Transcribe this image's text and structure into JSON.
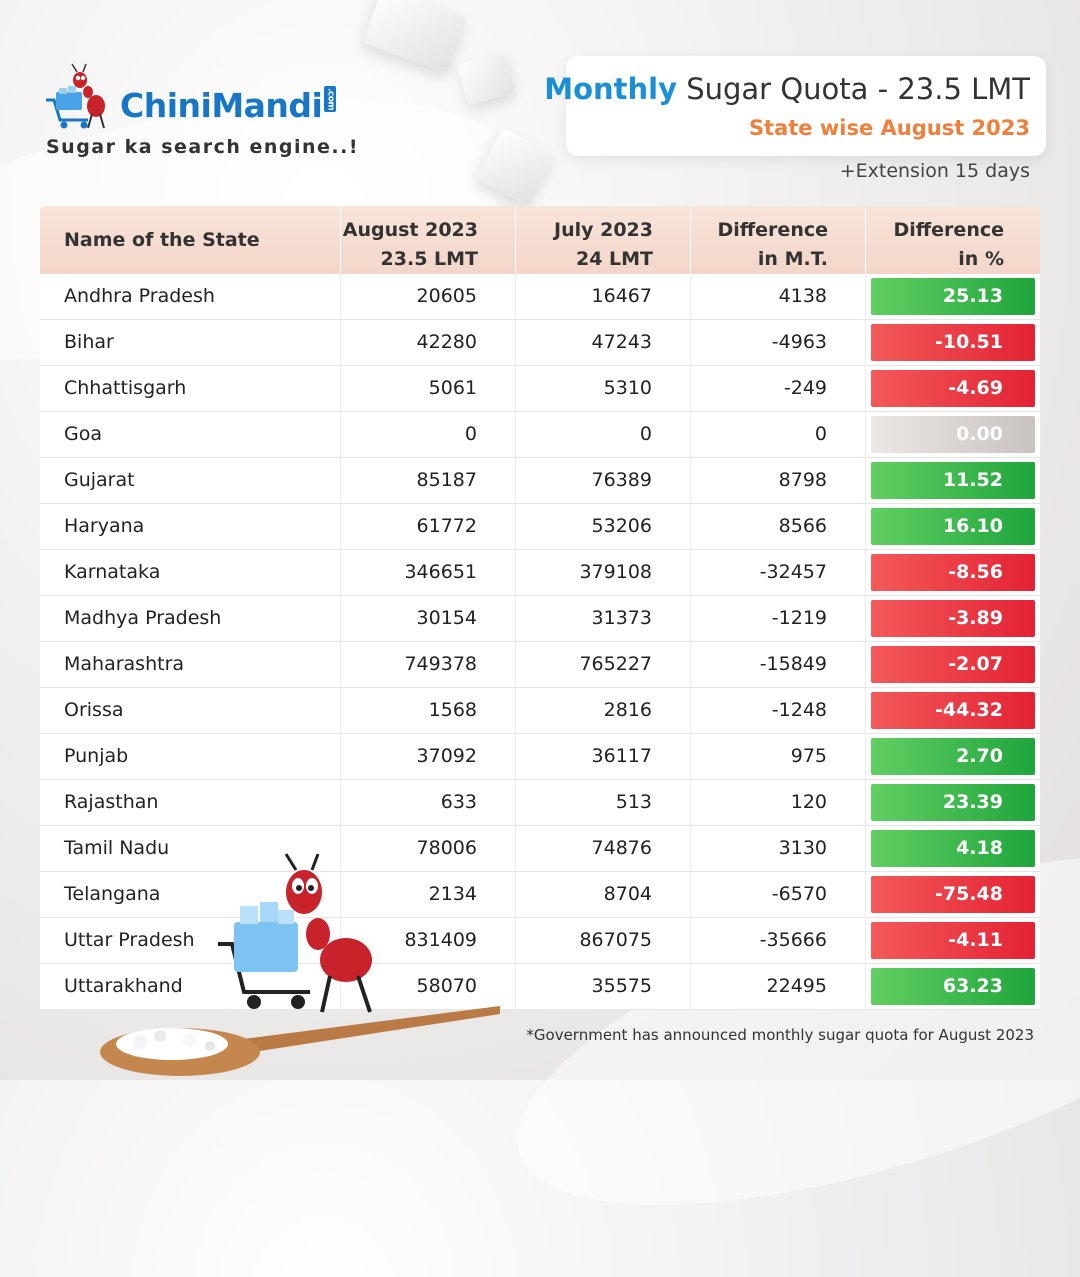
{
  "brand": {
    "name": "ChiniMandi",
    "domain_badge": ".com",
    "tagline": "Sugar ka search engine..!"
  },
  "header": {
    "title_accent": "Monthly",
    "title_rest": "Sugar Quota - 23.5 LMT",
    "subtitle": "State wise August 2023",
    "extension_note": "+Extension 15 days"
  },
  "colors": {
    "accent_blue": "#1a8fd6",
    "subtitle_orange": "#f07f3b",
    "positive": "#2aae45",
    "negative": "#e93040",
    "neutral": "#d6d1ce"
  },
  "table": {
    "headers": [
      {
        "line1": "Name of the State",
        "line2": ""
      },
      {
        "line1": "August 2023",
        "line2": "23.5 LMT"
      },
      {
        "line1": "July 2023",
        "line2": "24 LMT"
      },
      {
        "line1": "Difference",
        "line2": "in M.T."
      },
      {
        "line1": "Difference",
        "line2": "in %"
      }
    ],
    "rows": [
      {
        "state": "Andhra Pradesh",
        "aug": "20605",
        "jul": "16467",
        "diff_mt": "4138",
        "diff_pct": "25.13",
        "trend": "pos"
      },
      {
        "state": "Bihar",
        "aug": "42280",
        "jul": "47243",
        "diff_mt": "-4963",
        "diff_pct": "-10.51",
        "trend": "neg"
      },
      {
        "state": "Chhattisgarh",
        "aug": "5061",
        "jul": "5310",
        "diff_mt": "-249",
        "diff_pct": "-4.69",
        "trend": "neg"
      },
      {
        "state": "Goa",
        "aug": "0",
        "jul": "0",
        "diff_mt": "0",
        "diff_pct": "0.00",
        "trend": "zero"
      },
      {
        "state": "Gujarat",
        "aug": "85187",
        "jul": "76389",
        "diff_mt": "8798",
        "diff_pct": "11.52",
        "trend": "pos"
      },
      {
        "state": "Haryana",
        "aug": "61772",
        "jul": "53206",
        "diff_mt": "8566",
        "diff_pct": "16.10",
        "trend": "pos"
      },
      {
        "state": "Karnataka",
        "aug": "346651",
        "jul": "379108",
        "diff_mt": "-32457",
        "diff_pct": "-8.56",
        "trend": "neg"
      },
      {
        "state": "Madhya Pradesh",
        "aug": "30154",
        "jul": "31373",
        "diff_mt": "-1219",
        "diff_pct": "-3.89",
        "trend": "neg"
      },
      {
        "state": "Maharashtra",
        "aug": "749378",
        "jul": "765227",
        "diff_mt": "-15849",
        "diff_pct": "-2.07",
        "trend": "neg"
      },
      {
        "state": "Orissa",
        "aug": "1568",
        "jul": "2816",
        "diff_mt": "-1248",
        "diff_pct": "-44.32",
        "trend": "neg"
      },
      {
        "state": "Punjab",
        "aug": "37092",
        "jul": "36117",
        "diff_mt": "975",
        "diff_pct": "2.70",
        "trend": "pos"
      },
      {
        "state": "Rajasthan",
        "aug": "633",
        "jul": "513",
        "diff_mt": "120",
        "diff_pct": "23.39",
        "trend": "pos"
      },
      {
        "state": "Tamil Nadu",
        "aug": "78006",
        "jul": "74876",
        "diff_mt": "3130",
        "diff_pct": "4.18",
        "trend": "pos"
      },
      {
        "state": "Telangana",
        "aug": "2134",
        "jul": "8704",
        "diff_mt": "-6570",
        "diff_pct": "-75.48",
        "trend": "neg"
      },
      {
        "state": "Uttar Pradesh",
        "aug": "831409",
        "jul": "867075",
        "diff_mt": "-35666",
        "diff_pct": "-4.11",
        "trend": "neg"
      },
      {
        "state": "Uttarakhand",
        "aug": "58070",
        "jul": "35575",
        "diff_mt": "22495",
        "diff_pct": "63.23",
        "trend": "pos"
      }
    ]
  },
  "footnote": "*Government has announced monthly sugar quota for August 2023"
}
